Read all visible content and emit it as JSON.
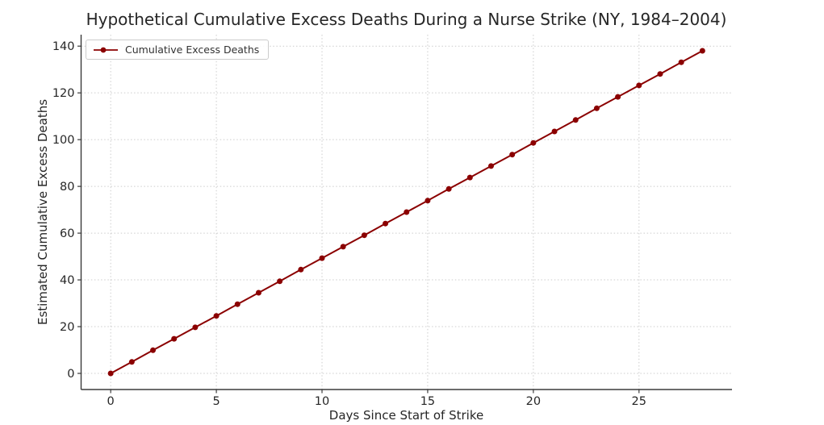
{
  "chart_data": {
    "type": "line",
    "title": "Hypothetical Cumulative Excess Deaths During a Nurse Strike (NY, 1984–2004)",
    "xlabel": "Days Since Start of Strike",
    "ylabel": "Estimated Cumulative Excess Deaths",
    "legend": {
      "position": "upper-left",
      "entries": [
        "Cumulative Excess Deaths"
      ]
    },
    "series": [
      {
        "name": "Cumulative Excess Deaths",
        "x": [
          0,
          1,
          2,
          3,
          4,
          5,
          6,
          7,
          8,
          9,
          10,
          11,
          12,
          13,
          14,
          15,
          16,
          17,
          18,
          19,
          20,
          21,
          22,
          23,
          24,
          25,
          26,
          27,
          28
        ],
        "values": [
          0.0,
          4.9,
          9.9,
          14.8,
          19.7,
          24.6,
          29.6,
          34.5,
          39.4,
          44.4,
          49.3,
          54.2,
          59.1,
          64.1,
          69.0,
          73.9,
          78.9,
          83.8,
          88.7,
          93.6,
          98.6,
          103.5,
          108.4,
          113.4,
          118.3,
          123.2,
          128.1,
          133.1,
          138.0
        ],
        "marker": "circle"
      }
    ],
    "xticks": [
      0,
      5,
      10,
      15,
      20,
      25
    ],
    "yticks": [
      0,
      20,
      40,
      60,
      80,
      100,
      120,
      140
    ],
    "xlim": [
      -1.4,
      29.4
    ],
    "ylim": [
      -6.9,
      144.9
    ],
    "grid": "dotted",
    "colors": {
      "line": "#8B0000",
      "spine": "#3b3b3b",
      "tick_text": "#262626",
      "grid": "#cccccc"
    }
  }
}
